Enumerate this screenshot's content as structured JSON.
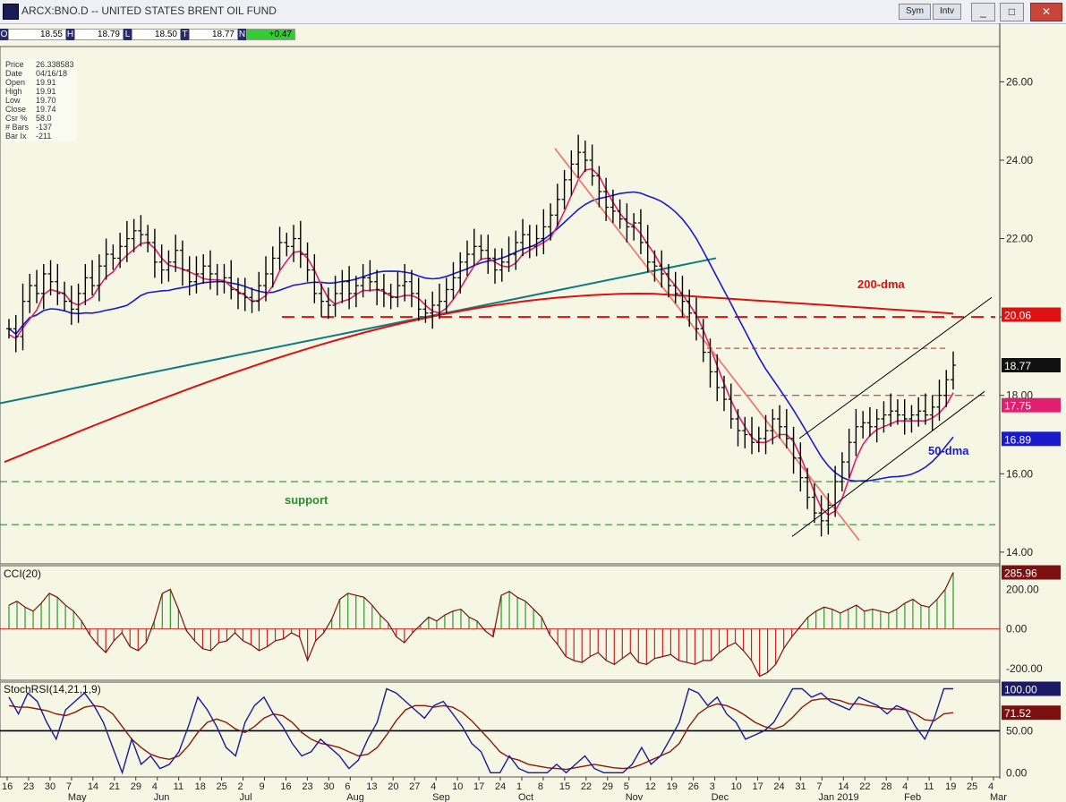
{
  "window": {
    "title": "ARCX:BNO.D -- UNITED STATES BRENT OIL FUND",
    "toolbar": {
      "symbol_label": "Sym",
      "interval_label": "Intv"
    },
    "controls": {
      "minimize": "_",
      "maximize": "□",
      "close": "✕"
    }
  },
  "ohlc_bar": {
    "open_label": "O",
    "open": "18.55",
    "high_label": "H",
    "high": "18.79",
    "low_label": "L",
    "low": "18.50",
    "close_label": "T",
    "close": "18.77",
    "change_label": "N",
    "change": "+0.47"
  },
  "cursor_info": [
    {
      "key": "Price",
      "value": "26.338583"
    },
    {
      "key": "Date",
      "value": "04/16/18"
    },
    {
      "key": "Open",
      "value": "19.91"
    },
    {
      "key": "High",
      "value": "19.91"
    },
    {
      "key": "Low",
      "value": "19.70"
    },
    {
      "key": "Close",
      "value": "19.74"
    },
    {
      "key": "Csr %",
      "value": "58.0"
    },
    {
      "key": "# Bars",
      "value": "-137"
    },
    {
      "key": "Bar Ix",
      "value": "-211"
    }
  ],
  "colors": {
    "background": "#f5f7e4",
    "price_bars": "#000000",
    "ema_short": "#e0206e",
    "dma50": "#1a1acc",
    "dma200": "#dd1111",
    "trendline_teal": "#117a80",
    "support": "#2e8b2e",
    "downtrend": "#f07a72",
    "cci_pos": "#2a9a2a",
    "cci_neg": "#cc2222",
    "stoch_fast": "#1a1a99",
    "stoch_slow": "#8b1a0a"
  },
  "chart_data": [
    {
      "type": "line",
      "panel": "price",
      "ylim": [
        13.7,
        26.9
      ],
      "y_ticks": [
        "26.00",
        "24.00",
        "22.00",
        "20.00",
        "18.00",
        "16.00",
        "14.00"
      ],
      "x_tick_labels": [
        "16",
        "23",
        "30",
        "7",
        "14",
        "21",
        "29",
        "4",
        "11",
        "18",
        "25",
        "2",
        "9",
        "16",
        "23",
        "30",
        "6",
        "13",
        "20",
        "27",
        "4",
        "10",
        "17",
        "24",
        "1",
        "8",
        "15",
        "22",
        "29",
        "5",
        "12",
        "19",
        "26",
        "3",
        "10",
        "17",
        "24",
        "31",
        "7",
        "14",
        "22",
        "28",
        "4",
        "11",
        "19",
        "25",
        "4"
      ],
      "month_labels": [
        "May",
        "Jun",
        "Jul",
        "Aug",
        "Sep",
        "Oct",
        "Nov",
        "Dec",
        "Jan 2019",
        "Feb",
        "Mar"
      ],
      "bars_close": [
        19.7,
        19.5,
        20.4,
        20.8,
        20.6,
        21.1,
        20.9,
        20.6,
        20.4,
        20.2,
        20.6,
        21.0,
        20.8,
        21.3,
        21.6,
        21.5,
        21.8,
        22.0,
        22.2,
        22.1,
        21.9,
        21.4,
        21.2,
        21.4,
        21.7,
        21.2,
        20.9,
        21.1,
        21.3,
        21.1,
        20.9,
        21.0,
        20.7,
        20.6,
        20.5,
        20.4,
        20.8,
        21.1,
        21.5,
        21.9,
        21.8,
        22.0,
        21.6,
        21.2,
        20.6,
        20.4,
        20.3,
        20.6,
        20.9,
        20.6,
        20.8,
        21.0,
        20.9,
        20.7,
        20.6,
        20.5,
        20.8,
        20.9,
        20.6,
        20.2,
        20.1,
        20.3,
        20.4,
        20.7,
        21.0,
        21.4,
        21.6,
        21.8,
        21.7,
        21.5,
        21.2,
        21.4,
        21.6,
        21.9,
        22.1,
        21.8,
        22.0,
        22.3,
        22.6,
        23.0,
        23.5,
        23.9,
        24.2,
        24.0,
        23.6,
        23.2,
        22.8,
        22.7,
        22.5,
        22.3,
        22.4,
        21.9,
        21.4,
        21.3,
        21.1,
        20.8,
        20.6,
        20.4,
        20.1,
        19.7,
        19.1,
        18.6,
        18.2,
        17.9,
        17.4,
        17.1,
        17.0,
        16.8,
        16.9,
        17.1,
        17.4,
        17.2,
        16.9,
        16.4,
        15.9,
        15.4,
        15.0,
        14.8,
        15.2,
        15.8,
        16.3,
        16.8,
        17.2,
        17.3,
        17.2,
        17.4,
        17.5,
        17.6,
        17.5,
        17.4,
        17.5,
        17.6,
        17.5,
        17.7,
        18.0,
        18.4,
        18.77
      ],
      "support_levels": [
        15.8,
        14.7
      ],
      "resistance_levels": [
        20.0,
        19.2,
        18.0
      ],
      "annotations": [
        "support",
        "200-dma",
        "50-dma"
      ],
      "right_badges": [
        {
          "text": "20.06",
          "color": "#dd1111"
        },
        {
          "text": "18.77",
          "color": "#000000"
        },
        {
          "text": "17.75",
          "color": "#e0206e"
        },
        {
          "text": "16.89",
          "color": "#1a1acc"
        }
      ]
    },
    {
      "type": "bar",
      "panel": "CCI(20)",
      "title": "CCI(20)",
      "ylim": [
        -260,
        320
      ],
      "y_ticks": [
        "200.00",
        "0.00",
        "-200.00"
      ],
      "badge": "285.96",
      "values": [
        120,
        140,
        110,
        90,
        130,
        180,
        160,
        120,
        90,
        40,
        -30,
        -80,
        -120,
        -60,
        -20,
        -90,
        -110,
        -70,
        40,
        180,
        200,
        100,
        -10,
        -60,
        -100,
        -110,
        -70,
        -60,
        -20,
        -60,
        -80,
        -110,
        -90,
        -60,
        -50,
        -20,
        -40,
        -160,
        -60,
        -20,
        50,
        150,
        180,
        170,
        160,
        120,
        70,
        30,
        -40,
        -70,
        -20,
        20,
        60,
        40,
        70,
        90,
        100,
        60,
        40,
        -10,
        -40,
        170,
        190,
        160,
        140,
        100,
        60,
        -30,
        -80,
        -140,
        -160,
        -170,
        -140,
        -120,
        -160,
        -180,
        -150,
        -120,
        -170,
        -180,
        -150,
        -140,
        -130,
        -160,
        -170,
        -180,
        -160,
        -160,
        -120,
        -90,
        -70,
        -110,
        -160,
        -240,
        -220,
        -180,
        -100,
        -40,
        10,
        60,
        90,
        110,
        100,
        80,
        100,
        120,
        90,
        100,
        90,
        80,
        100,
        130,
        150,
        120,
        110,
        150,
        200,
        285.96
      ]
    },
    {
      "type": "line",
      "panel": "StochRSI(14,21,1,9)",
      "title": "StochRSI(14,21,1,9)",
      "ylim": [
        -5,
        108
      ],
      "y_ticks": [
        "100.00",
        "50.00",
        "0.00"
      ],
      "series": [
        {
          "name": "StochRSI fast",
          "badge": "100.00",
          "values": [
            90,
            70,
            95,
            85,
            60,
            40,
            75,
            85,
            95,
            80,
            60,
            30,
            0,
            40,
            10,
            20,
            5,
            10,
            25,
            55,
            90,
            75,
            55,
            30,
            20,
            60,
            80,
            90,
            70,
            55,
            35,
            20,
            25,
            40,
            30,
            20,
            5,
            15,
            40,
            60,
            100,
            95,
            85,
            75,
            65,
            80,
            85,
            70,
            55,
            35,
            25,
            0,
            0,
            20,
            5,
            0,
            0,
            0,
            10,
            0,
            10,
            20,
            5,
            0,
            0,
            0,
            10,
            30,
            10,
            20,
            40,
            60,
            100,
            95,
            80,
            90,
            70,
            60,
            40,
            45,
            50,
            60,
            80,
            100,
            100,
            90,
            95,
            85,
            80,
            75,
            90,
            85,
            80,
            70,
            80,
            75,
            55,
            40,
            65,
            100,
            100
          ]
        },
        {
          "name": "StochRSI slow",
          "badge": "71.52",
          "values": [
            80,
            78,
            78,
            76,
            74,
            70,
            68,
            72,
            78,
            80,
            78,
            70,
            55,
            40,
            30,
            22,
            18,
            16,
            20,
            32,
            48,
            60,
            64,
            60,
            52,
            48,
            55,
            65,
            70,
            68,
            60,
            48,
            40,
            35,
            33,
            30,
            25,
            20,
            22,
            30,
            45,
            62,
            75,
            80,
            80,
            78,
            80,
            78,
            72,
            62,
            50,
            38,
            25,
            18,
            15,
            10,
            8,
            6,
            5,
            4,
            6,
            8,
            10,
            8,
            6,
            5,
            6,
            10,
            15,
            20,
            25,
            35,
            55,
            70,
            78,
            82,
            80,
            75,
            68,
            60,
            55,
            52,
            56,
            66,
            78,
            86,
            88,
            88,
            86,
            82,
            82,
            80,
            78,
            76,
            76,
            75,
            70,
            63,
            62,
            70,
            71.52
          ]
        }
      ]
    }
  ]
}
